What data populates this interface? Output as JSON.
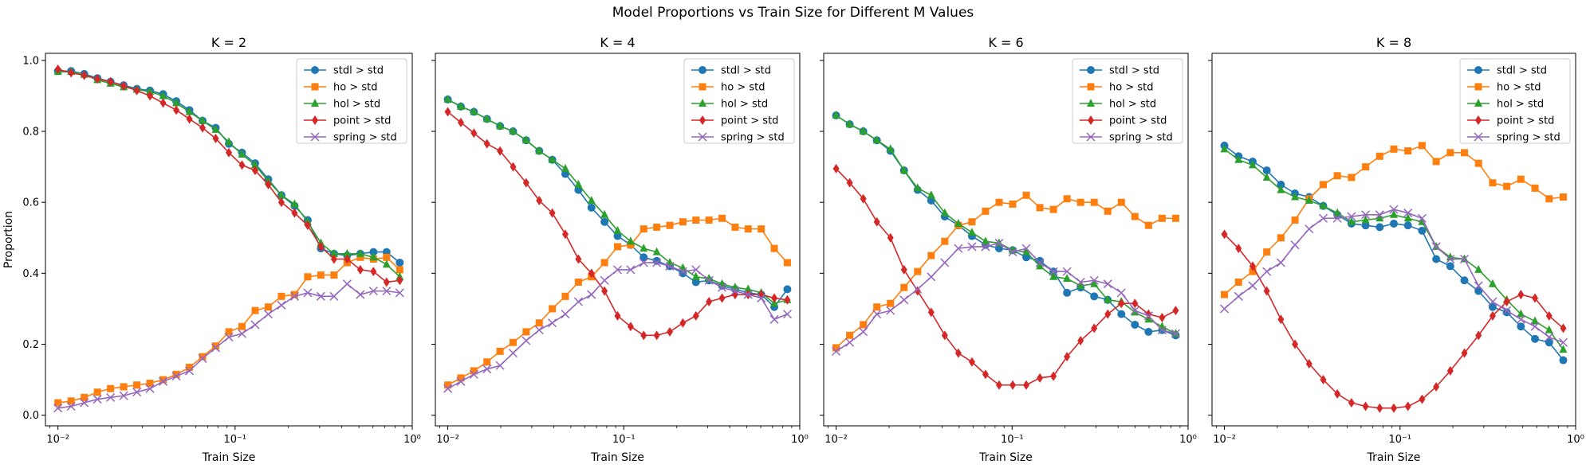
{
  "figure": {
    "suptitle": "Model Proportions vs Train Size for Different M Values"
  },
  "chart_data": [
    {
      "type": "line",
      "title": "K = 2",
      "xlabel": "Train Size",
      "ylabel": "Proportion",
      "xscale": "log",
      "xlim": [
        0.0085,
        1.0
      ],
      "ylim": [
        -0.03,
        1.02
      ],
      "xticks": [
        "10⁻²",
        "10⁻¹",
        "10⁰"
      ],
      "yticks": [
        "0.0",
        "0.2",
        "0.4",
        "0.6",
        "0.8",
        "1.0"
      ],
      "legend_loc": "upper right",
      "series": [
        {
          "name": "stdl > std",
          "color": "#1f77b4",
          "marker": "circle",
          "y": [
            0.97,
            0.97,
            0.962,
            0.95,
            0.94,
            0.93,
            0.92,
            0.915,
            0.905,
            0.885,
            0.86,
            0.83,
            0.81,
            0.765,
            0.74,
            0.71,
            0.665,
            0.62,
            0.59,
            0.55,
            0.47,
            0.455,
            0.45,
            0.455,
            0.46,
            0.46,
            0.43
          ]
        },
        {
          "name": "ho > std",
          "color": "#ff7f0e",
          "marker": "square",
          "y": [
            0.035,
            0.04,
            0.05,
            0.065,
            0.075,
            0.08,
            0.085,
            0.09,
            0.1,
            0.115,
            0.135,
            0.165,
            0.195,
            0.235,
            0.25,
            0.295,
            0.305,
            0.335,
            0.34,
            0.39,
            0.395,
            0.395,
            0.43,
            0.445,
            0.44,
            0.445,
            0.41
          ]
        },
        {
          "name": "hol > std",
          "color": "#2ca02c",
          "marker": "triangle",
          "y": [
            0.968,
            0.968,
            0.96,
            0.945,
            0.935,
            0.925,
            0.918,
            0.912,
            0.9,
            0.88,
            0.855,
            0.83,
            0.805,
            0.77,
            0.735,
            0.705,
            0.66,
            0.62,
            0.595,
            0.545,
            0.485,
            0.455,
            0.455,
            0.455,
            0.445,
            0.425,
            0.39
          ]
        },
        {
          "name": "point > std",
          "color": "#d62728",
          "marker": "diamond",
          "y": [
            0.975,
            0.965,
            0.958,
            0.948,
            0.94,
            0.928,
            0.915,
            0.9,
            0.88,
            0.86,
            0.835,
            0.81,
            0.78,
            0.74,
            0.705,
            0.69,
            0.65,
            0.6,
            0.57,
            0.535,
            0.475,
            0.44,
            0.44,
            0.41,
            0.405,
            0.375,
            0.38
          ]
        },
        {
          "name": "spring > std",
          "color": "#9467bd",
          "marker": "x",
          "y": [
            0.02,
            0.025,
            0.035,
            0.045,
            0.05,
            0.055,
            0.065,
            0.075,
            0.095,
            0.11,
            0.125,
            0.16,
            0.19,
            0.22,
            0.23,
            0.255,
            0.285,
            0.31,
            0.335,
            0.345,
            0.335,
            0.335,
            0.37,
            0.34,
            0.35,
            0.35,
            0.345
          ]
        }
      ]
    },
    {
      "type": "line",
      "title": "K = 4",
      "xlabel": "Train Size",
      "ylabel": "",
      "xscale": "log",
      "xlim": [
        0.0085,
        1.0
      ],
      "ylim": [
        -0.03,
        1.02
      ],
      "xticks": [
        "10⁻²",
        "10⁻¹",
        "10⁰"
      ],
      "yticks": [],
      "legend_loc": "upper right",
      "series": [
        {
          "name": "stdl > std",
          "color": "#1f77b4",
          "marker": "circle",
          "y": [
            0.89,
            0.87,
            0.855,
            0.835,
            0.815,
            0.8,
            0.775,
            0.745,
            0.72,
            0.68,
            0.635,
            0.585,
            0.545,
            0.505,
            0.48,
            0.445,
            0.435,
            0.42,
            0.4,
            0.375,
            0.38,
            0.365,
            0.355,
            0.345,
            0.34,
            0.305,
            0.355
          ]
        },
        {
          "name": "ho > std",
          "color": "#ff7f0e",
          "marker": "square",
          "y": [
            0.085,
            0.105,
            0.125,
            0.15,
            0.18,
            0.205,
            0.235,
            0.26,
            0.3,
            0.335,
            0.375,
            0.39,
            0.43,
            0.475,
            0.48,
            0.525,
            0.53,
            0.535,
            0.545,
            0.55,
            0.55,
            0.555,
            0.53,
            0.525,
            0.525,
            0.47,
            0.43
          ]
        },
        {
          "name": "hol > std",
          "color": "#2ca02c",
          "marker": "triangle",
          "y": [
            0.89,
            0.87,
            0.855,
            0.835,
            0.815,
            0.8,
            0.775,
            0.745,
            0.72,
            0.695,
            0.65,
            0.605,
            0.565,
            0.52,
            0.49,
            0.47,
            0.46,
            0.43,
            0.415,
            0.39,
            0.385,
            0.37,
            0.36,
            0.355,
            0.345,
            0.315,
            0.325
          ]
        },
        {
          "name": "point > std",
          "color": "#d62728",
          "marker": "diamond",
          "y": [
            0.855,
            0.825,
            0.795,
            0.765,
            0.745,
            0.7,
            0.655,
            0.605,
            0.57,
            0.51,
            0.44,
            0.4,
            0.35,
            0.28,
            0.25,
            0.225,
            0.225,
            0.235,
            0.26,
            0.28,
            0.32,
            0.33,
            0.34,
            0.34,
            0.34,
            0.33,
            0.325
          ]
        },
        {
          "name": "spring > std",
          "color": "#9467bd",
          "marker": "x",
          "y": [
            0.075,
            0.095,
            0.115,
            0.13,
            0.14,
            0.175,
            0.21,
            0.24,
            0.26,
            0.285,
            0.32,
            0.34,
            0.38,
            0.41,
            0.41,
            0.43,
            0.43,
            0.42,
            0.405,
            0.41,
            0.38,
            0.36,
            0.35,
            0.34,
            0.33,
            0.27,
            0.285
          ]
        }
      ]
    },
    {
      "type": "line",
      "title": "K = 6",
      "xlabel": "Train Size",
      "ylabel": "",
      "xscale": "log",
      "xlim": [
        0.0085,
        1.0
      ],
      "ylim": [
        -0.03,
        1.02
      ],
      "xticks": [
        "10⁻²",
        "10⁻¹",
        "10⁰"
      ],
      "yticks": [],
      "legend_loc": "upper right",
      "series": [
        {
          "name": "stdl > std",
          "color": "#1f77b4",
          "marker": "circle",
          "y": [
            0.845,
            0.82,
            0.8,
            0.775,
            0.745,
            0.69,
            0.635,
            0.605,
            0.56,
            0.535,
            0.505,
            0.48,
            0.47,
            0.465,
            0.445,
            0.435,
            0.405,
            0.345,
            0.36,
            0.335,
            0.325,
            0.285,
            0.255,
            0.235,
            0.24,
            0.225
          ]
        },
        {
          "name": "ho > std",
          "color": "#ff7f0e",
          "marker": "square",
          "y": [
            0.19,
            0.225,
            0.255,
            0.305,
            0.315,
            0.36,
            0.405,
            0.45,
            0.49,
            0.535,
            0.545,
            0.575,
            0.6,
            0.595,
            0.62,
            0.585,
            0.58,
            0.61,
            0.6,
            0.6,
            0.575,
            0.6,
            0.56,
            0.535,
            0.555,
            0.555
          ]
        },
        {
          "name": "hol > std",
          "color": "#2ca02c",
          "marker": "triangle",
          "y": [
            0.845,
            0.82,
            0.8,
            0.775,
            0.75,
            0.69,
            0.64,
            0.62,
            0.57,
            0.54,
            0.515,
            0.49,
            0.485,
            0.465,
            0.46,
            0.42,
            0.39,
            0.385,
            0.365,
            0.37,
            0.325,
            0.32,
            0.29,
            0.27,
            0.25,
            0.23
          ]
        },
        {
          "name": "point > std",
          "color": "#d62728",
          "marker": "diamond",
          "y": [
            0.695,
            0.655,
            0.61,
            0.545,
            0.5,
            0.41,
            0.35,
            0.29,
            0.225,
            0.175,
            0.15,
            0.115,
            0.085,
            0.085,
            0.085,
            0.105,
            0.11,
            0.165,
            0.21,
            0.245,
            0.285,
            0.315,
            0.315,
            0.285,
            0.275,
            0.295
          ]
        },
        {
          "name": "spring > std",
          "color": "#9467bd",
          "marker": "x",
          "y": [
            0.18,
            0.205,
            0.235,
            0.285,
            0.295,
            0.325,
            0.355,
            0.39,
            0.43,
            0.47,
            0.475,
            0.475,
            0.485,
            0.46,
            0.47,
            0.43,
            0.405,
            0.405,
            0.375,
            0.38,
            0.37,
            0.345,
            0.295,
            0.28,
            0.24,
            0.23
          ]
        }
      ]
    },
    {
      "type": "line",
      "title": "K = 8",
      "xlabel": "Train Size",
      "ylabel": "",
      "xscale": "log",
      "xlim": [
        0.0085,
        1.0
      ],
      "ylim": [
        -0.03,
        1.02
      ],
      "xticks": [
        "10⁻²",
        "10⁻¹",
        "10⁰"
      ],
      "yticks": [],
      "legend_loc": "upper right",
      "series": [
        {
          "name": "stdl > std",
          "color": "#1f77b4",
          "marker": "circle",
          "y": [
            0.76,
            0.73,
            0.715,
            0.69,
            0.65,
            0.625,
            0.615,
            0.59,
            0.565,
            0.54,
            0.535,
            0.53,
            0.54,
            0.535,
            0.52,
            0.44,
            0.42,
            0.38,
            0.35,
            0.305,
            0.29,
            0.25,
            0.215,
            0.205,
            0.155
          ]
        },
        {
          "name": "ho > std",
          "color": "#ff7f0e",
          "marker": "square",
          "y": [
            0.34,
            0.375,
            0.405,
            0.46,
            0.5,
            0.55,
            0.61,
            0.65,
            0.675,
            0.67,
            0.7,
            0.73,
            0.75,
            0.745,
            0.76,
            0.715,
            0.74,
            0.74,
            0.71,
            0.655,
            0.645,
            0.665,
            0.64,
            0.61,
            0.615
          ]
        },
        {
          "name": "hol > std",
          "color": "#2ca02c",
          "marker": "triangle",
          "y": [
            0.75,
            0.72,
            0.705,
            0.67,
            0.635,
            0.615,
            0.605,
            0.59,
            0.57,
            0.545,
            0.55,
            0.555,
            0.565,
            0.555,
            0.545,
            0.475,
            0.445,
            0.44,
            0.41,
            0.37,
            0.325,
            0.285,
            0.265,
            0.24,
            0.185
          ]
        },
        {
          "name": "point > std",
          "color": "#d62728",
          "marker": "diamond",
          "y": [
            0.51,
            0.47,
            0.42,
            0.35,
            0.27,
            0.2,
            0.145,
            0.1,
            0.06,
            0.035,
            0.025,
            0.02,
            0.02,
            0.025,
            0.045,
            0.08,
            0.125,
            0.175,
            0.225,
            0.28,
            0.32,
            0.34,
            0.33,
            0.28,
            0.245
          ]
        },
        {
          "name": "spring > std",
          "color": "#9467bd",
          "marker": "x",
          "y": [
            0.3,
            0.335,
            0.365,
            0.405,
            0.43,
            0.48,
            0.525,
            0.555,
            0.555,
            0.56,
            0.565,
            0.565,
            0.58,
            0.57,
            0.555,
            0.475,
            0.44,
            0.44,
            0.365,
            0.32,
            0.295,
            0.27,
            0.25,
            0.22,
            0.205
          ]
        }
      ]
    }
  ]
}
